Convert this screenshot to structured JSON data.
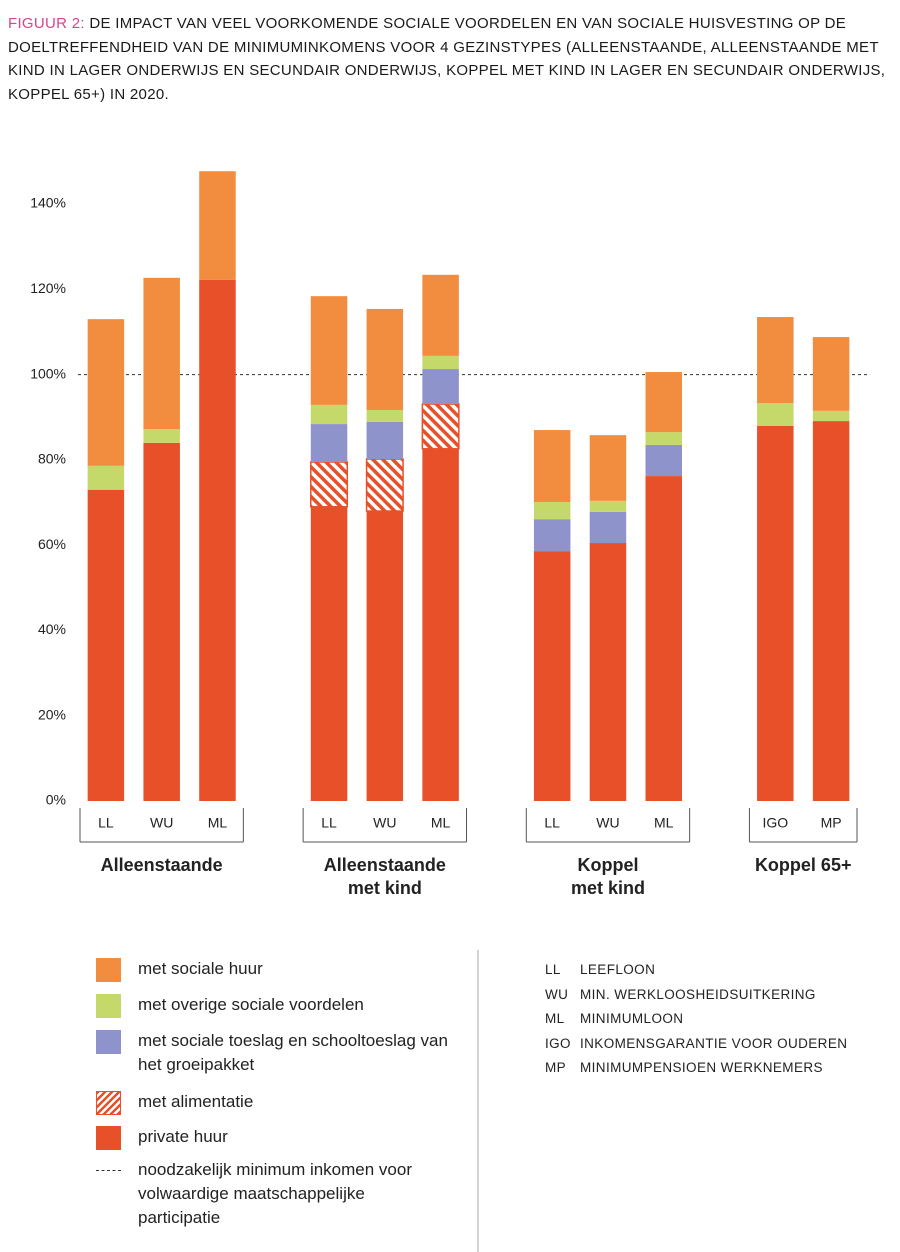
{
  "chart_data": {
    "type": "stacked_bar",
    "figure_label": "FIGUUR 2:",
    "title": "DE IMPACT VAN VEEL VOORKOMENDE SOCIALE VOORDELEN EN VAN SOCIALE HUISVESTING OP DE DOELTREFFENDHEID VAN DE MINIMUMINKOMENS VOOR 4 GEZINSTYPES (ALLEENSTAANDE, ALLEENSTAANDE MET KIND IN LAGER ONDERWIJS EN SECUNDAIR ONDERWIJS, KOPPEL MET KIND IN LAGER EN SECUNDAIR ONDERWIJS, KOPPEL 65+) IN 2020.",
    "categories": [
      "LL",
      "WU",
      "ML",
      null,
      "LL",
      "WU",
      "ML",
      null,
      "LL",
      "WU",
      "ML",
      null,
      "IGO",
      "MP"
    ],
    "group_labels": [
      [
        "Alleenstaande"
      ],
      [
        "Alleenstaande",
        "met kind"
      ],
      [
        "Koppel",
        "met kind"
      ],
      [
        "Koppel 65+"
      ]
    ],
    "series": [
      {
        "name": "private huur",
        "color": "#e8502a",
        "values": [
          73,
          84,
          122.2,
          null,
          69,
          68,
          82.6,
          null,
          58.6,
          60.5,
          76.2,
          null,
          88,
          89.1
        ]
      },
      {
        "name": "met alimentatie",
        "color": "#e8502a",
        "pattern": "hatch",
        "values": [
          null,
          null,
          null,
          null,
          10.5,
          12.2,
          10.5,
          null,
          null,
          null,
          null,
          null,
          null,
          null
        ]
      },
      {
        "name": "met sociale toeslag en schooltoeslag van het groeipakket",
        "color": "#8e93cc",
        "values": [
          null,
          null,
          null,
          null,
          8.9,
          8.7,
          8.2,
          null,
          7.5,
          7.3,
          7.3,
          null,
          null,
          null
        ]
      },
      {
        "name": "met overige sociale voordelen",
        "color": "#c5d96b",
        "values": [
          5.6,
          3.2,
          null,
          null,
          4.5,
          2.8,
          3.1,
          null,
          4,
          2.6,
          3,
          null,
          5.3,
          2.4
        ]
      },
      {
        "name": "met sociale huur",
        "color": "#f28c3f",
        "values": [
          34.4,
          35.5,
          25.5,
          null,
          25.5,
          23.7,
          19,
          null,
          16.9,
          15.4,
          14.1,
          null,
          20.2,
          17.3
        ]
      }
    ],
    "reference_value": 100,
    "reference_label": "noodzakelijk minimum inkomen voor volwaardige maatschappelijke participatie",
    "ylim": [
      0,
      150
    ],
    "yticks": [
      {
        "value": 0,
        "label": "0%"
      },
      {
        "value": 20,
        "label": "20%"
      },
      {
        "value": 40,
        "label": "40%"
      },
      {
        "value": 60,
        "label": "60%"
      },
      {
        "value": 80,
        "label": "80%"
      },
      {
        "value": 100,
        "label": "100%"
      },
      {
        "value": 120,
        "label": "120%"
      },
      {
        "value": 140,
        "label": "140%"
      }
    ],
    "abbreviations": [
      {
        "code": "LL",
        "label": "LEEFLOON"
      },
      {
        "code": "WU",
        "label": "MIN. WERKLOOSHEIDSUITKERING"
      },
      {
        "code": "ML",
        "label": "MINIMUMLOON"
      },
      {
        "code": "IGO",
        "label": "INKOMENSGARANTIE VOOR OUDEREN"
      },
      {
        "code": "MP",
        "label": "MINIMUMPENSIOEN WERKNEMERS"
      }
    ]
  }
}
